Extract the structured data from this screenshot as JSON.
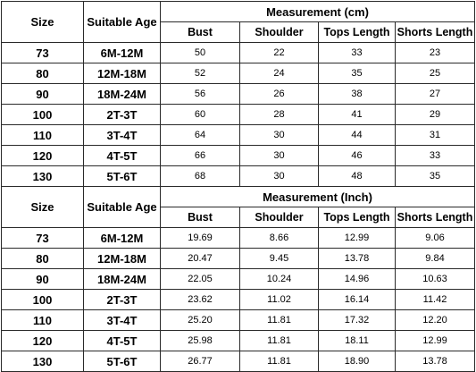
{
  "tables": [
    {
      "headers": {
        "size": "Size",
        "age": "Suitable Age",
        "group": "Measurement (cm)",
        "cols": [
          "Bust",
          "Shoulder",
          "Tops Length",
          "Shorts Length"
        ]
      },
      "rows": [
        {
          "size": "73",
          "age": "6M-12M",
          "vals": [
            "50",
            "22",
            "33",
            "23"
          ]
        },
        {
          "size": "80",
          "age": "12M-18M",
          "vals": [
            "52",
            "24",
            "35",
            "25"
          ]
        },
        {
          "size": "90",
          "age": "18M-24M",
          "vals": [
            "56",
            "26",
            "38",
            "27"
          ]
        },
        {
          "size": "100",
          "age": "2T-3T",
          "vals": [
            "60",
            "28",
            "41",
            "29"
          ]
        },
        {
          "size": "110",
          "age": "3T-4T",
          "vals": [
            "64",
            "30",
            "44",
            "31"
          ]
        },
        {
          "size": "120",
          "age": "4T-5T",
          "vals": [
            "66",
            "30",
            "46",
            "33"
          ]
        },
        {
          "size": "130",
          "age": "5T-6T",
          "vals": [
            "68",
            "30",
            "48",
            "35"
          ]
        }
      ]
    },
    {
      "headers": {
        "size": "Size",
        "age": "Suitable Age",
        "group": "Measurement (Inch)",
        "cols": [
          "Bust",
          "Shoulder",
          "Tops Length",
          "Shorts Length"
        ]
      },
      "rows": [
        {
          "size": "73",
          "age": "6M-12M",
          "vals": [
            "19.69",
            "8.66",
            "12.99",
            "9.06"
          ]
        },
        {
          "size": "80",
          "age": "12M-18M",
          "vals": [
            "20.47",
            "9.45",
            "13.78",
            "9.84"
          ]
        },
        {
          "size": "90",
          "age": "18M-24M",
          "vals": [
            "22.05",
            "10.24",
            "14.96",
            "10.63"
          ]
        },
        {
          "size": "100",
          "age": "2T-3T",
          "vals": [
            "23.62",
            "11.02",
            "16.14",
            "11.42"
          ]
        },
        {
          "size": "110",
          "age": "3T-4T",
          "vals": [
            "25.20",
            "11.81",
            "17.32",
            "12.20"
          ]
        },
        {
          "size": "120",
          "age": "4T-5T",
          "vals": [
            "25.98",
            "11.81",
            "18.11",
            "12.99"
          ]
        },
        {
          "size": "130",
          "age": "5T-6T",
          "vals": [
            "26.77",
            "11.81",
            "18.90",
            "13.78"
          ]
        }
      ]
    }
  ]
}
